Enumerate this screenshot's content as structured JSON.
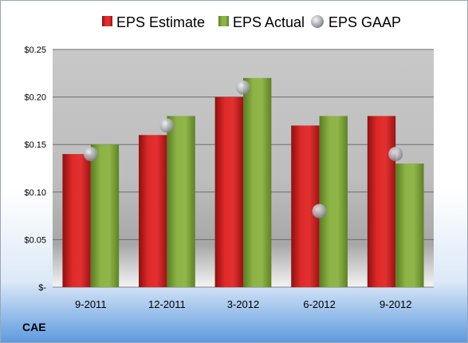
{
  "chart_data": {
    "type": "bar",
    "categories": [
      "9-2011",
      "12-2011",
      "3-2012",
      "6-2012",
      "9-2012"
    ],
    "series": [
      {
        "name": "EPS Estimate",
        "type": "bar",
        "values": [
          0.14,
          0.16,
          0.2,
          0.17,
          0.18
        ],
        "color": "#cc1f1f"
      },
      {
        "name": "EPS Actual",
        "type": "bar",
        "values": [
          0.15,
          0.18,
          0.22,
          0.18,
          0.13
        ],
        "color": "#7fa33a"
      },
      {
        "name": "EPS GAAP",
        "type": "scatter",
        "values": [
          0.14,
          0.17,
          0.21,
          0.08,
          0.14
        ],
        "color": "#a0a4aa"
      }
    ],
    "y_ticks": [
      {
        "value": 0.25,
        "label": "$0.25"
      },
      {
        "value": 0.2,
        "label": "$0.20"
      },
      {
        "value": 0.15,
        "label": "$0.15"
      },
      {
        "value": 0.1,
        "label": "$0.10"
      },
      {
        "value": 0.05,
        "label": "$0.05"
      },
      {
        "value": 0,
        "label": "$-"
      }
    ],
    "ylim": [
      0,
      0.25
    ],
    "grid": true,
    "legend_position": "top",
    "ticker": "CAE"
  }
}
